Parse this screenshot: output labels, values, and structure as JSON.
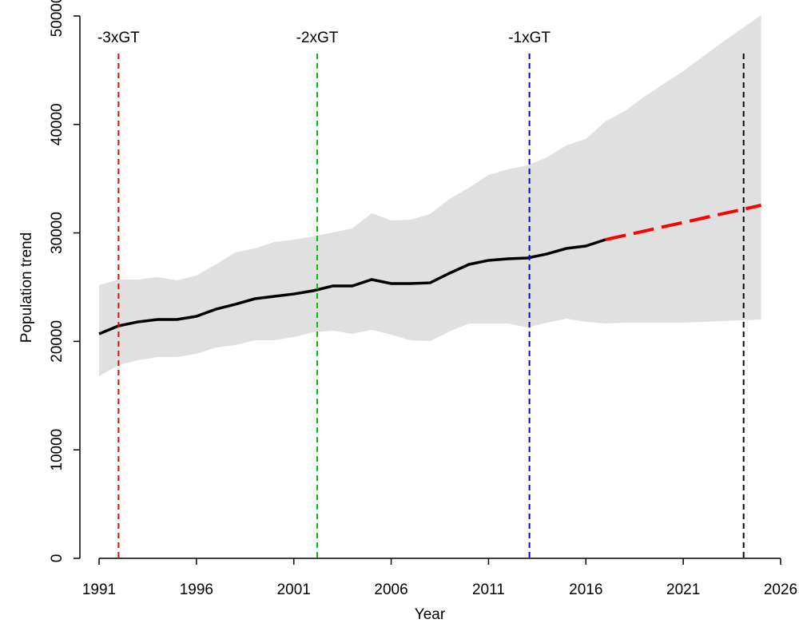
{
  "chart_data": {
    "type": "line",
    "xlabel": "Year",
    "ylabel": "Population trend",
    "xlim": [
      1991,
      2026
    ],
    "ylim": [
      0,
      50000
    ],
    "xticks": [
      1991,
      1996,
      2001,
      2006,
      2011,
      2016,
      2021,
      2026
    ],
    "yticks": [
      0,
      10000,
      20000,
      30000,
      40000,
      50000
    ],
    "band": {
      "color": "#e0e0e0",
      "x": [
        1991,
        1992,
        1993,
        1994,
        1995,
        1996,
        1997,
        1998,
        1999,
        2000,
        2001,
        2002,
        2003,
        2004,
        2005,
        2006,
        2007,
        2008,
        2009,
        2010,
        2011,
        2012,
        2013,
        2014,
        2015,
        2016,
        2017,
        2018,
        2019,
        2020,
        2021,
        2022,
        2023,
        2024,
        2025
      ],
      "upper": [
        25180,
        25700,
        25700,
        25920,
        25630,
        26070,
        27100,
        28200,
        28570,
        29160,
        29380,
        29680,
        30040,
        30410,
        31810,
        31150,
        31220,
        31740,
        33140,
        34170,
        35350,
        35860,
        36230,
        36970,
        38070,
        38660,
        40280,
        41240,
        42560,
        43740,
        44920,
        46240,
        47570,
        48820,
        50070
      ],
      "lower": [
        16790,
        17820,
        18260,
        18560,
        18560,
        18850,
        19440,
        19660,
        20100,
        20100,
        20400,
        20840,
        20990,
        20690,
        21060,
        20620,
        20100,
        20030,
        20910,
        21650,
        21650,
        21650,
        21280,
        21720,
        22090,
        21800,
        21650,
        21720,
        21720,
        21720,
        21720,
        21800,
        21870,
        21950,
        22020
      ]
    },
    "series": [
      {
        "color": "#000000",
        "dashed": false,
        "x": [
          1991,
          1992,
          1993,
          1994,
          1995,
          1996,
          1997,
          1998,
          1999,
          2000,
          2001,
          2002,
          2003,
          2004,
          2005,
          2006,
          2007,
          2008,
          2009,
          2010,
          2011,
          2012,
          2013,
          2014,
          2015,
          2016,
          2017
        ],
        "values": [
          20690,
          21430,
          21800,
          22020,
          22020,
          22310,
          22970,
          23420,
          23930,
          24150,
          24370,
          24670,
          25110,
          25110,
          25700,
          25330,
          25330,
          25400,
          26290,
          27100,
          27470,
          27610,
          27690,
          28060,
          28570,
          28790,
          29380
        ]
      },
      {
        "color": "#ff0000",
        "dashed": true,
        "x": [
          2017,
          2018,
          2019,
          2020,
          2021,
          2022,
          2023,
          2024,
          2025
        ],
        "values": [
          29380,
          29770,
          30170,
          30570,
          30960,
          31360,
          31760,
          32150,
          32550
        ]
      }
    ],
    "vlines": [
      {
        "x": 1992,
        "label": "-3xGT",
        "color": "#ff0000"
      },
      {
        "x": 2002.2,
        "label": "-2xGT",
        "color": "#00c000"
      },
      {
        "x": 2013.1,
        "label": "-1xGT",
        "color": "#0000ff"
      },
      {
        "x": 2024.1,
        "color": "#000000"
      }
    ]
  }
}
